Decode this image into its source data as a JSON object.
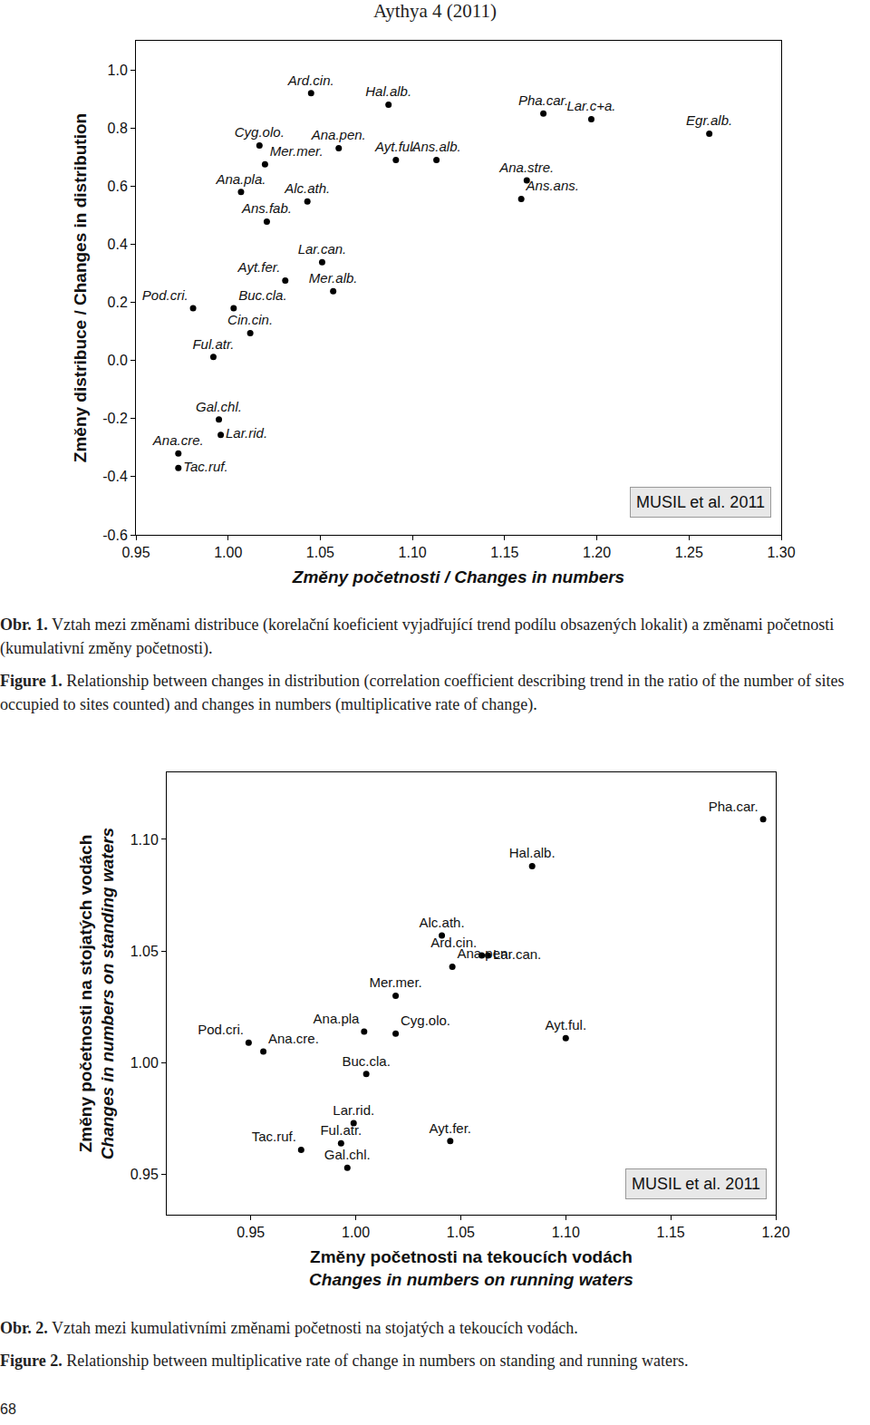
{
  "header": "Aythya 4 (2011)",
  "page_number": "68",
  "captions": [
    [
      {
        "label": "Obr. 1.",
        "text": "Vztah mezi změnami distribuce (korelační koeficient vyjadřující trend podílu obsazených lokalit) a změnami početnosti (kumulativní změny početnosti)."
      },
      {
        "label": "Figure 1.",
        "text": "Relationship between changes in distribution (correlation coefficient describing trend in the ratio of the number of sites occupied to sites counted) and changes in numbers (multiplicative rate of change)."
      }
    ],
    [
      {
        "label": "Obr. 2.",
        "text": "Vztah mezi kumulativními změnami početnosti na stojatých a tekoucích vodách."
      },
      {
        "label": "Figure 2.",
        "text": "Relationship between multiplicative rate of change in numbers on standing and running waters."
      }
    ]
  ],
  "chart_data": [
    {
      "type": "scatter",
      "xlabel": [
        "Změny početnosti / Changes in numbers"
      ],
      "ylabel": [
        "Změny distribuce / Changes in distribution"
      ],
      "annotation": "MUSIL et al. 2011",
      "color": "#000000",
      "marker": "circle",
      "grid": false,
      "labels": [
        "Ard.cin.",
        "Hal.alb.",
        "Pha.car.",
        "Lar.c+a.",
        "Egr.alb.",
        "Cyg.olo.",
        "Ana.pen.",
        "Mer.mer.",
        "Ayt.ful.",
        "Ans.alb.",
        "Ana.stre.",
        "Ans.ans.",
        "Ana.pla.",
        "Alc.ath.",
        "Ans.fab.",
        "Lar.can.",
        "Ayt.fer.",
        "Mer.alb.",
        "Pod.cri.",
        "Buc.cla.",
        "Cin.cin.",
        "Ful.atr.",
        "Gal.chl.",
        "Lar.rid.",
        "Ana.cre.",
        "Tac.ruf."
      ],
      "x": [
        1.045,
        1.087,
        1.171,
        1.197,
        1.261,
        1.017,
        1.06,
        1.02,
        1.091,
        1.113,
        1.162,
        1.159,
        1.007,
        1.043,
        1.021,
        1.051,
        1.031,
        1.057,
        0.981,
        1.003,
        1.012,
        0.992,
        0.995,
        0.996,
        0.973,
        0.973
      ],
      "values": [
        0.92,
        0.88,
        0.85,
        0.83,
        0.78,
        0.74,
        0.73,
        0.675,
        0.69,
        0.69,
        0.62,
        0.556,
        0.58,
        0.547,
        0.478,
        0.338,
        0.275,
        0.238,
        0.18,
        0.18,
        0.094,
        0.012,
        -0.203,
        -0.256,
        -0.32,
        -0.37
      ],
      "xlim": [
        0.95,
        1.3
      ],
      "ylim": [
        -0.6,
        1.1
      ],
      "xticks": [
        0.95,
        {
          "value": 1,
          "label": "1.00"
        },
        1.05,
        {
          "value": 1.1,
          "label": "1.10"
        },
        1.15,
        {
          "value": 1.2,
          "label": "1.20"
        },
        1.25,
        {
          "value": 1.3,
          "label": "1.30"
        }
      ],
      "yticks": [
        -0.6,
        -0.4,
        -0.2,
        {
          "value": 0,
          "label": "0.0"
        },
        0.2,
        0.4,
        0.6,
        0.8,
        {
          "value": 1,
          "label": "1.0"
        }
      ]
    },
    {
      "type": "scatter",
      "xlabel": [
        "Změny početnosti na tekoucích vodách",
        "Changes in numbers on running waters"
      ],
      "ylabel": [
        "Změny početnosti na stojatých vodách",
        "Changes in numbers on standing waters"
      ],
      "annotation": "MUSIL et al. 2011",
      "color": "#000000",
      "marker": "circle",
      "grid": false,
      "labels": [
        "Pha.car.",
        "Hal.alb.",
        "Alc.ath.",
        "Ana.pen.",
        "Ard.cin.",
        "Lar.can.",
        "Mer.mer.",
        "Ana.pla",
        "Cyg.olo.",
        "Ayt.ful.",
        "Pod.cri.",
        "Ana.cre.",
        "Buc.cla.",
        "Lar.rid.",
        "Ful.atr.",
        "Tac.ruf.",
        "Ayt.fer.",
        "Gal.chl."
      ],
      "x": [
        1.194,
        1.084,
        1.041,
        1.046,
        1.06,
        1.063,
        1.019,
        1.004,
        1.019,
        1.1,
        0.949,
        0.956,
        1.005,
        0.999,
        0.993,
        0.974,
        1.045,
        0.996
      ],
      "values": [
        1.109,
        1.088,
        1.057,
        1.043,
        1.048,
        1.048,
        1.03,
        1.014,
        1.013,
        1.011,
        1.009,
        1.005,
        0.995,
        0.973,
        0.964,
        0.961,
        0.965,
        0.953
      ],
      "xlim": [
        0.91,
        1.2
      ],
      "ylim": [
        0.932,
        1.13
      ],
      "xticks": [
        0.95,
        {
          "value": 1,
          "label": "1.00"
        },
        1.05,
        {
          "value": 1.1,
          "label": "1.10"
        },
        1.15,
        {
          "value": 1.2,
          "label": "1.20"
        }
      ],
      "yticks": [
        0.95,
        {
          "value": 1,
          "label": "1.00"
        },
        1.05,
        {
          "value": 1.1,
          "label": "1.10"
        }
      ]
    }
  ]
}
